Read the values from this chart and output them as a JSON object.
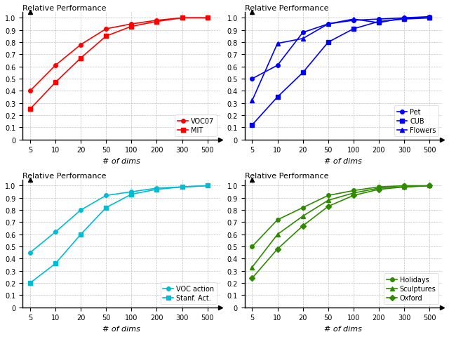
{
  "x": [
    5,
    10,
    20,
    50,
    100,
    200,
    300,
    500
  ],
  "top_left": {
    "title": "Relative Performance",
    "xlabel": "# of dims",
    "series": [
      {
        "label": "VOC07",
        "marker": "o",
        "values": [
          0.4,
          0.61,
          0.78,
          0.91,
          0.95,
          0.98,
          1.0,
          1.0
        ]
      },
      {
        "label": "MIT",
        "marker": "s",
        "values": [
          0.25,
          0.47,
          0.67,
          0.85,
          0.93,
          0.97,
          1.0,
          1.0
        ]
      }
    ],
    "color": "#ff0000"
  },
  "top_right": {
    "title": "Relative Performance",
    "xlabel": "# of dims",
    "series": [
      {
        "label": "Pet",
        "marker": "o",
        "values": [
          0.5,
          0.61,
          0.88,
          0.95,
          0.98,
          0.99,
          1.0,
          1.01
        ]
      },
      {
        "label": "CUB",
        "marker": "s",
        "values": [
          0.12,
          0.35,
          0.55,
          0.8,
          0.91,
          0.97,
          0.99,
          1.0
        ]
      },
      {
        "label": "Flowers",
        "marker": "^",
        "values": [
          0.32,
          0.79,
          0.83,
          0.95,
          0.99,
          0.96,
          1.0,
          1.0
        ]
      }
    ],
    "color": "#0000ff"
  },
  "bot_left": {
    "title": "Relative Performance",
    "xlabel": "# of dims",
    "series": [
      {
        "label": "VOC action",
        "marker": "o",
        "values": [
          0.45,
          0.62,
          0.8,
          0.92,
          0.95,
          0.98,
          0.99,
          1.0
        ]
      },
      {
        "label": "Stanf. Act.",
        "marker": "s",
        "values": [
          0.2,
          0.36,
          0.6,
          0.82,
          0.93,
          0.97,
          0.99,
          1.0
        ]
      }
    ],
    "color": "#00bcd4"
  },
  "bot_right": {
    "title": "Relative Performance",
    "xlabel": "# of dims",
    "series": [
      {
        "label": "Holidays",
        "marker": "o",
        "values": [
          0.5,
          0.72,
          0.82,
          0.92,
          0.96,
          0.99,
          1.0,
          1.0
        ]
      },
      {
        "label": "Sculptures",
        "marker": "^",
        "values": [
          0.33,
          0.6,
          0.75,
          0.88,
          0.94,
          0.98,
          0.99,
          1.0
        ]
      },
      {
        "label": "Oxford",
        "marker": "D",
        "values": [
          0.24,
          0.48,
          0.67,
          0.83,
          0.92,
          0.97,
          0.99,
          1.0
        ]
      }
    ],
    "color": "#2e8b00"
  },
  "background_color": "#ffffff",
  "grid_color": "#c0c0c0",
  "ylim": [
    0,
    1.05
  ],
  "yticks": [
    0.0,
    0.1,
    0.2,
    0.3,
    0.4,
    0.5,
    0.6,
    0.7,
    0.8,
    0.9,
    1.0
  ]
}
